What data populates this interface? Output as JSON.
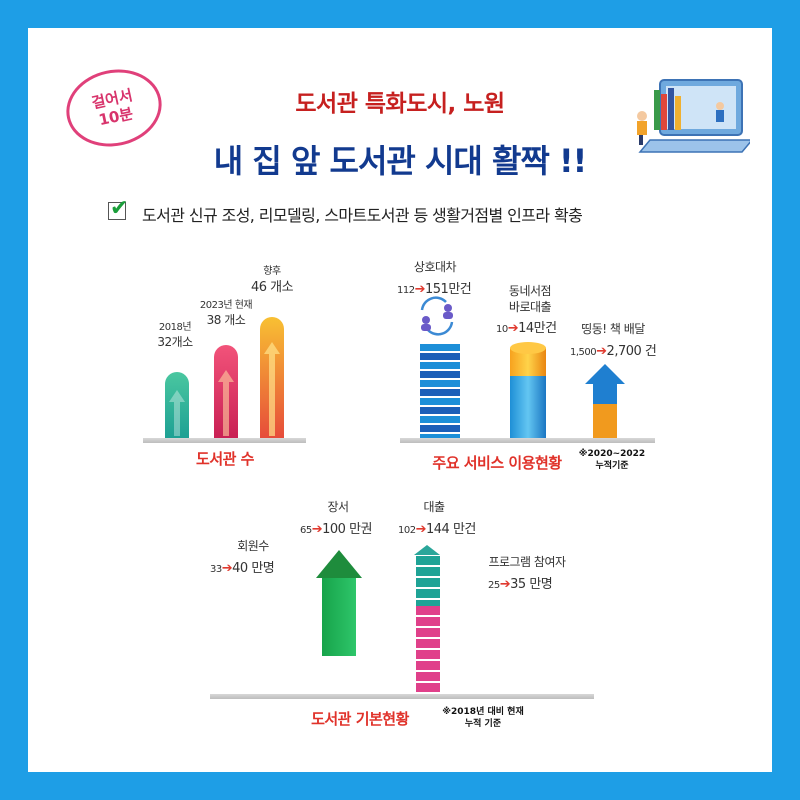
{
  "stamp": {
    "line1": "걸어서",
    "line2": "10분"
  },
  "header": {
    "title_small": "도서관 특화도시, 노원",
    "title_big": "내 집 앞 도서관 시대 활짝 !!"
  },
  "subtitle": "도서관 신규 조성, 리모델링, 스마트도서관 등 생활거점별 인프라 확충",
  "library_count": {
    "caption": "도서관 수",
    "bars": [
      {
        "year": "2018년",
        "value": "32개소",
        "color": "#2bb89a"
      },
      {
        "year": "2023년 현재",
        "value": "38 개소",
        "color": "#e8305e"
      },
      {
        "year": "향후",
        "value": "46 개소",
        "color": "#f0a020"
      }
    ]
  },
  "services": {
    "caption": "주요 서비스 이용현황",
    "note_line1": "※2020~2022",
    "note_line2": "누적기준",
    "items": [
      {
        "title": "상호대차",
        "from": "112",
        "to": "151만건"
      },
      {
        "title_line1": "동네서점",
        "title_line2": "바로대출",
        "from": "10",
        "to": "14만건"
      },
      {
        "title": "띵동! 책 배달",
        "from": "1,500",
        "to": "2,700 건"
      }
    ]
  },
  "basics": {
    "caption": "도서관 기본현황",
    "note_line1": "※2018년 대비 현재",
    "note_line2": "누적 기준",
    "members": {
      "title": "회원수",
      "from": "33",
      "to": "40 만명"
    },
    "books": {
      "title": "장서",
      "from": "65",
      "to": "100 만권"
    },
    "loans": {
      "title": "대출",
      "from": "102",
      "to": "144 만건"
    },
    "program": {
      "title": "프로그램 참여자",
      "from": "25",
      "to": "35 만명"
    }
  },
  "colors": {
    "frame": "#1e9ee6",
    "title_red": "#c6201f",
    "title_navy": "#123a8f",
    "arrow_red": "#e03a2f"
  }
}
